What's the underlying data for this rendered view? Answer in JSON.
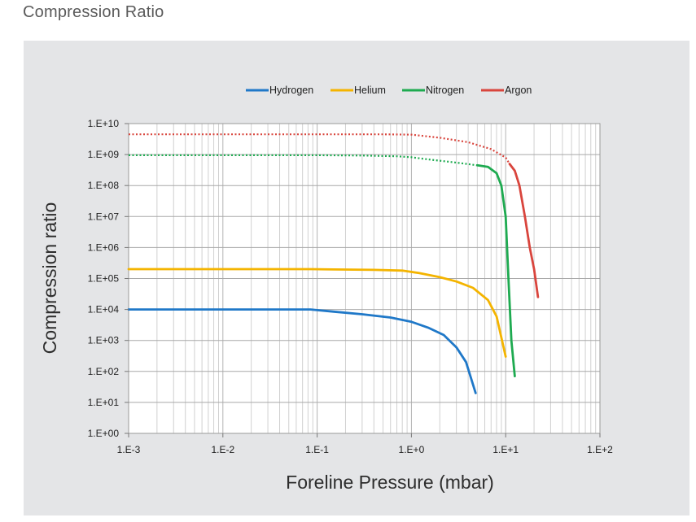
{
  "heading": "Compression Ratio",
  "chart_data": {
    "type": "line",
    "title": "",
    "xlabel": "Foreline Pressure (mbar)",
    "ylabel": "Compression ratio",
    "xscale": "log",
    "yscale": "log",
    "xlim": [
      0.001,
      100
    ],
    "ylim": [
      1,
      10000000000
    ],
    "x_tick_labels": [
      "1.E-3",
      "1.E-2",
      "1.E-1",
      "1.E+0",
      "1.E+1",
      "1.E+2"
    ],
    "y_tick_labels": [
      "1.E+00",
      "1.E+01",
      "1.E+02",
      "1.E+03",
      "1.E+04",
      "1.E+05",
      "1.E+06",
      "1.E+07",
      "1.E+08",
      "1.E+09",
      "1.E+10"
    ],
    "grid": true,
    "legend_position": "top",
    "series": [
      {
        "name": "Hydrogen",
        "color": "#1f78c8",
        "solid": [
          [
            0.001,
            10000
          ],
          [
            0.01,
            10000
          ],
          [
            0.085,
            10000
          ],
          [
            0.15,
            8500
          ],
          [
            0.3,
            7000
          ],
          [
            0.6,
            5500
          ],
          [
            1.0,
            4000
          ],
          [
            1.5,
            2600
          ],
          [
            2.2,
            1500
          ],
          [
            3.0,
            600
          ],
          [
            3.8,
            200
          ],
          [
            4.8,
            20
          ]
        ]
      },
      {
        "name": "Helium",
        "color": "#f4b400",
        "solid": [
          [
            0.001,
            200000
          ],
          [
            0.01,
            200000
          ],
          [
            0.085,
            200000
          ],
          [
            0.15,
            195000
          ],
          [
            0.4,
            190000
          ],
          [
            0.8,
            180000
          ],
          [
            1.2,
            150000
          ],
          [
            2.0,
            110000
          ],
          [
            3.0,
            80000
          ],
          [
            4.5,
            50000
          ],
          [
            6.5,
            20000
          ],
          [
            8.0,
            6000
          ],
          [
            10.0,
            300
          ]
        ]
      },
      {
        "name": "Nitrogen",
        "color": "#1eaa50",
        "dotted": [
          [
            0.001,
            950000000
          ],
          [
            0.01,
            950000000
          ],
          [
            0.1,
            950000000
          ],
          [
            0.3,
            930000000
          ],
          [
            0.7,
            880000000
          ],
          [
            1.0,
            820000000
          ],
          [
            1.5,
            700000000
          ],
          [
            3.0,
            550000000
          ],
          [
            5.0,
            450000000
          ]
        ],
        "solid": [
          [
            5.0,
            450000000
          ],
          [
            6.5,
            400000000
          ],
          [
            8.0,
            250000000
          ],
          [
            9.0,
            100000000
          ],
          [
            10.0,
            10000000
          ],
          [
            10.7,
            100000
          ],
          [
            11.5,
            1000
          ],
          [
            12.5,
            70
          ]
        ]
      },
      {
        "name": "Argon",
        "color": "#d9453d",
        "dotted": [
          [
            0.001,
            4500000000
          ],
          [
            0.01,
            4500000000
          ],
          [
            0.1,
            4500000000
          ],
          [
            0.5,
            4500000000
          ],
          [
            1.0,
            4400000000
          ],
          [
            2.0,
            3500000000
          ],
          [
            4.0,
            2500000000
          ],
          [
            7.0,
            1500000000
          ],
          [
            10.0,
            800000000
          ],
          [
            11.0,
            500000000
          ]
        ],
        "solid": [
          [
            11.0,
            500000000
          ],
          [
            12.5,
            300000000
          ],
          [
            14.0,
            100000000
          ],
          [
            16.0,
            10000000
          ],
          [
            18.0,
            1000000
          ],
          [
            20.0,
            200000
          ],
          [
            22.0,
            25000
          ]
        ]
      }
    ]
  }
}
